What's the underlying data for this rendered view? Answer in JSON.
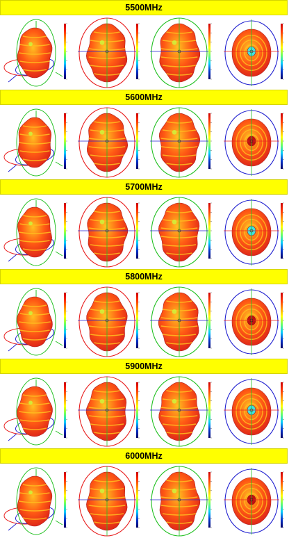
{
  "colors": {
    "header_bg": "#ffff00",
    "header_border": "#d4d400",
    "ring_red": "#e82020",
    "ring_green": "#22c022",
    "ring_blue": "#2222d0",
    "lobe_fill": "#ff5a14",
    "lobe_ridge": "#ffc020",
    "lobe_highlight": "#c8ff40",
    "lobe_edge": "#b02020",
    "cyan_spot": "#40e0e0"
  },
  "panels": [
    {
      "label": "5500MHz",
      "views": [
        "isometric-3d-pattern",
        "xz-plane-pattern",
        "yz-plane-pattern",
        "xy-plane-pattern"
      ]
    },
    {
      "label": "5600MHz",
      "views": [
        "isometric-3d-pattern",
        "xz-plane-pattern",
        "yz-plane-pattern",
        "xy-plane-pattern"
      ]
    },
    {
      "label": "5700MHz",
      "views": [
        "isometric-3d-pattern",
        "xz-plane-pattern",
        "yz-plane-pattern",
        "xy-plane-pattern"
      ]
    },
    {
      "label": "5800MHz",
      "views": [
        "isometric-3d-pattern",
        "xz-plane-pattern",
        "yz-plane-pattern",
        "xy-plane-pattern"
      ]
    },
    {
      "label": "5900MHz",
      "views": [
        "isometric-3d-pattern",
        "xz-plane-pattern",
        "yz-plane-pattern",
        "xy-plane-pattern"
      ]
    },
    {
      "label": "6000MHz",
      "views": [
        "isometric-3d-pattern",
        "xz-plane-pattern",
        "yz-plane-pattern",
        "xy-plane-pattern"
      ]
    }
  ],
  "colorbar_stops": [
    "#cc0000",
    "#ff3300",
    "#ff9900",
    "#ffff00",
    "#66ff66",
    "#00ccff",
    "#0033cc",
    "#000066"
  ]
}
